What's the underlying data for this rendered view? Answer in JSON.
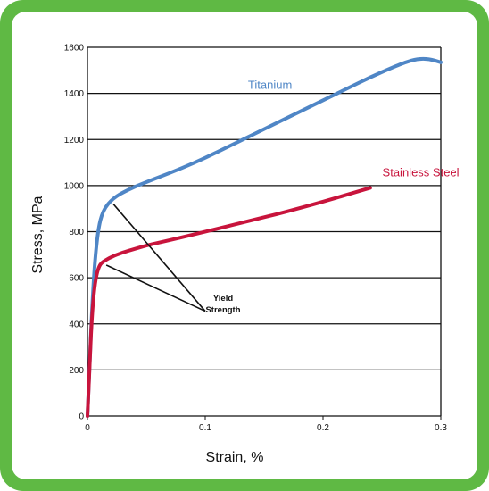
{
  "chart_data": {
    "type": "line",
    "title": "",
    "xlabel": "Strain, %",
    "ylabel": "Stress, MPa",
    "xlim": [
      0,
      0.3
    ],
    "ylim": [
      0,
      1600
    ],
    "x_ticks": [
      "0",
      "0.1",
      "0.2",
      "0.3"
    ],
    "y_ticks": [
      "0",
      "200",
      "400",
      "600",
      "800",
      "1000",
      "1200",
      "1400",
      "1600"
    ],
    "grid": "horizontal",
    "series": [
      {
        "name": "Titanium",
        "color": "#4f86c6",
        "x": [
          0,
          0.002,
          0.004,
          0.006,
          0.008,
          0.01,
          0.012,
          0.015,
          0.02,
          0.025,
          0.03,
          0.04,
          0.05,
          0.06,
          0.08,
          0.1,
          0.12,
          0.14,
          0.16,
          0.18,
          0.2,
          0.22,
          0.24,
          0.26,
          0.27,
          0.28,
          0.29,
          0.3
        ],
        "y": [
          0,
          250,
          480,
          650,
          760,
          830,
          870,
          905,
          935,
          955,
          970,
          995,
          1015,
          1035,
          1075,
          1120,
          1170,
          1220,
          1270,
          1320,
          1370,
          1420,
          1470,
          1515,
          1535,
          1550,
          1550,
          1535
        ]
      },
      {
        "name": "Stainless Steel",
        "color": "#c8143c",
        "x": [
          0,
          0.002,
          0.004,
          0.006,
          0.008,
          0.01,
          0.012,
          0.015,
          0.02,
          0.03,
          0.04,
          0.05,
          0.06,
          0.08,
          0.1,
          0.12,
          0.14,
          0.16,
          0.18,
          0.2,
          0.22,
          0.24
        ],
        "y": [
          0,
          250,
          450,
          560,
          620,
          650,
          665,
          675,
          690,
          710,
          725,
          740,
          752,
          775,
          800,
          825,
          850,
          875,
          902,
          930,
          960,
          990
        ]
      }
    ],
    "annotations": [
      {
        "text_line1": "Yield",
        "text_line2": "Strength"
      }
    ]
  }
}
